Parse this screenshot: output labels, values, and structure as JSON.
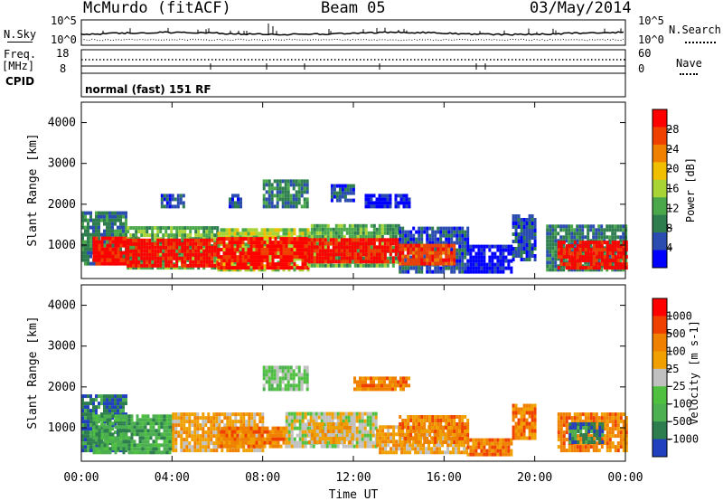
{
  "header": {
    "station": "McMurdo (fitACF)",
    "beam": "Beam 05",
    "date": "03/May/2014"
  },
  "top_panels": {
    "nsky_label": "N.Sky",
    "nsearch_label": "N.Search",
    "noise_ticks_left": [
      "10^5",
      "10^0"
    ],
    "noise_ticks_right": [
      "10^5",
      "10^0"
    ],
    "freq_label_1": "Freq.",
    "freq_label_2": "[MHz]",
    "freq_ticks": [
      "18",
      "8"
    ],
    "nave_label": "Nave",
    "nave_ticks": [
      "60",
      "0"
    ],
    "cpid_label": "CPID",
    "cpid_value": "normal (fast) 151 RF"
  },
  "colors": {
    "power_scale": [
      "#0000ff",
      "#2a4cb0",
      "#2e7d4f",
      "#4aa84a",
      "#a8d436",
      "#f0c000",
      "#f08000",
      "#f04000",
      "#ff0000"
    ],
    "velocity_scale": [
      "#2040c0",
      "#2e7d4f",
      "#4caf50",
      "#50c040",
      "#c0c0c0",
      "#f0a000",
      "#f08000",
      "#f04000",
      "#ff0000"
    ]
  },
  "chart_data": [
    {
      "type": "heatmap",
      "name": "power",
      "ylabel": "Slant Range [km]",
      "colorbar_label": "Power [dB]",
      "colorbar_ticks": [
        "28",
        "24",
        "20",
        "16",
        "12",
        "8",
        "4"
      ],
      "y_ticks": [
        "4000",
        "3000",
        "2000",
        "1000"
      ],
      "ylim": [
        180,
        4500
      ],
      "x_ticks": [
        "00:00",
        "04:00",
        "08:00",
        "12:00",
        "16:00",
        "20:00",
        "00:00"
      ],
      "xlim_hours": [
        0,
        24
      ],
      "bands": [
        {
          "t0": 0.0,
          "t1": 2.0,
          "r0": 500,
          "r1": 1800,
          "level": 2
        },
        {
          "t0": 0.5,
          "t1": 2.5,
          "r0": 500,
          "r1": 1200,
          "level": 8
        },
        {
          "t0": 2.0,
          "t1": 6.0,
          "r0": 400,
          "r1": 1400,
          "level": 3
        },
        {
          "t0": 2.0,
          "t1": 6.0,
          "r0": 450,
          "r1": 1100,
          "level": 8
        },
        {
          "t0": 6.0,
          "t1": 10.0,
          "r0": 350,
          "r1": 1400,
          "level": 4
        },
        {
          "t0": 6.0,
          "t1": 10.0,
          "r0": 400,
          "r1": 1150,
          "level": 8
        },
        {
          "t0": 10.0,
          "t1": 14.0,
          "r0": 450,
          "r1": 1500,
          "level": 3
        },
        {
          "t0": 10.0,
          "t1": 14.0,
          "r0": 550,
          "r1": 1100,
          "level": 8
        },
        {
          "t0": 14.0,
          "t1": 17.0,
          "r0": 300,
          "r1": 1450,
          "level": 1
        },
        {
          "t0": 14.0,
          "t1": 16.5,
          "r0": 500,
          "r1": 1000,
          "level": 7
        },
        {
          "t0": 17.0,
          "t1": 19.0,
          "r0": 300,
          "r1": 1000,
          "level": 0
        },
        {
          "t0": 19.0,
          "t1": 20.0,
          "r0": 600,
          "r1": 1700,
          "level": 1
        },
        {
          "t0": 20.5,
          "t1": 24.0,
          "r0": 350,
          "r1": 1500,
          "level": 2
        },
        {
          "t0": 21.0,
          "t1": 24.0,
          "r0": 400,
          "r1": 1100,
          "level": 8
        },
        {
          "t0": 3.5,
          "t1": 4.5,
          "r0": 1900,
          "r1": 2200,
          "level": 1
        },
        {
          "t0": 6.5,
          "t1": 7.0,
          "r0": 1900,
          "r1": 2200,
          "level": 1
        },
        {
          "t0": 8.0,
          "t1": 10.0,
          "r0": 1900,
          "r1": 2600,
          "level": 2
        },
        {
          "t0": 11.0,
          "t1": 12.0,
          "r0": 2050,
          "r1": 2450,
          "level": 1
        },
        {
          "t0": 12.5,
          "t1": 14.5,
          "r0": 1900,
          "r1": 2200,
          "level": 0
        }
      ]
    },
    {
      "type": "heatmap",
      "name": "velocity",
      "ylabel": "Slant Range [km]",
      "colorbar_label": "Velocity [m s-1]",
      "colorbar_ticks": [
        "1000",
        "500",
        "100",
        "25",
        "-25",
        "-100",
        "-500",
        "-1000"
      ],
      "y_ticks": [
        "4000",
        "3000",
        "2000",
        "1000"
      ],
      "ylim": [
        180,
        4500
      ],
      "x_ticks": [
        "00:00",
        "04:00",
        "08:00",
        "12:00",
        "16:00",
        "20:00",
        "00:00"
      ],
      "xlabel": "Time UT",
      "xlim_hours": [
        0,
        24
      ],
      "bands": [
        {
          "t0": 0.0,
          "t1": 2.0,
          "r0": 400,
          "r1": 1800,
          "level": 1
        },
        {
          "t0": 0.5,
          "t1": 4.0,
          "r0": 350,
          "r1": 1300,
          "level": 2
        },
        {
          "t0": 4.0,
          "t1": 8.0,
          "r0": 400,
          "r1": 1350,
          "level": 5
        },
        {
          "t0": 6.0,
          "t1": 9.0,
          "r0": 500,
          "r1": 1000,
          "level": 6
        },
        {
          "t0": 9.0,
          "t1": 13.0,
          "r0": 500,
          "r1": 1350,
          "level": 4
        },
        {
          "t0": 10.0,
          "t1": 12.0,
          "r0": 600,
          "r1": 1100,
          "level": 5
        },
        {
          "t0": 13.0,
          "t1": 17.0,
          "r0": 350,
          "r1": 1000,
          "level": 5
        },
        {
          "t0": 14.0,
          "t1": 17.0,
          "r0": 600,
          "r1": 1300,
          "level": 6
        },
        {
          "t0": 17.0,
          "t1": 19.0,
          "r0": 300,
          "r1": 700,
          "level": 6
        },
        {
          "t0": 19.0,
          "t1": 20.0,
          "r0": 700,
          "r1": 1500,
          "level": 6
        },
        {
          "t0": 21.0,
          "t1": 24.0,
          "r0": 400,
          "r1": 1350,
          "level": 6
        },
        {
          "t0": 21.5,
          "t1": 23.0,
          "r0": 600,
          "r1": 1100,
          "level": 1
        },
        {
          "t0": 8.0,
          "t1": 10.0,
          "r0": 1900,
          "r1": 2500,
          "level": 3
        },
        {
          "t0": 12.0,
          "t1": 14.5,
          "r0": 1900,
          "r1": 2200,
          "level": 6
        }
      ]
    }
  ]
}
